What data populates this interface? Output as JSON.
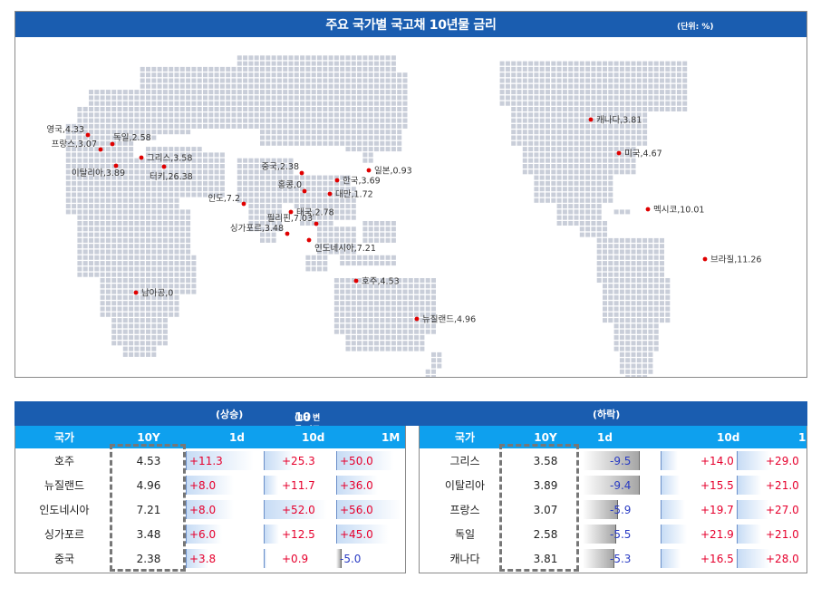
{
  "map": {
    "title": "주요 국가별 국고채 10년물 금리",
    "unit": "(단위: %)",
    "pins": [
      {
        "label": "영국,4.33"
      },
      {
        "label": "독일,2.58"
      },
      {
        "label": "프랑스,3.07"
      },
      {
        "label": "그리스,3.58"
      },
      {
        "label": "이탈리아,3.89"
      },
      {
        "label": "터키,26.38"
      },
      {
        "label": "중국,2.38"
      },
      {
        "label": "일본,0.93"
      },
      {
        "label": "한국,3.69"
      },
      {
        "label": "홍콩,0"
      },
      {
        "label": "대만,1.72"
      },
      {
        "label": "인도,7.2"
      },
      {
        "label": "태국,2.78"
      },
      {
        "label": "필리핀,7.03"
      },
      {
        "label": "싱가포르,3.48"
      },
      {
        "label": "인도네시아,7.21"
      },
      {
        "label": "남아공,0"
      },
      {
        "label": "호주,4.53"
      },
      {
        "label": "뉴질랜드,4.96"
      },
      {
        "label": "캐나다,3.81"
      },
      {
        "label": "미국,4.67"
      },
      {
        "label": "멕시코,10.01"
      },
      {
        "label": "브라질,11.26"
      }
    ]
  },
  "ranking": {
    "up_label": "(상승)",
    "title": "10년물 금리 변동 국가 순위",
    "subtitle": "(1d 변동 기준 %,bp)",
    "down_label": "(하락)",
    "columns": {
      "country": "국가",
      "y10": "10Y",
      "d1": "1d",
      "d10": "10d",
      "m1": "1M"
    },
    "rising": [
      {
        "country": "호주",
        "y10": "4.53",
        "d1": "+11.3",
        "d10": "+25.3",
        "m1": "+50.0",
        "d1v": 11.3,
        "d10v": 25.3,
        "m1v": 50.0
      },
      {
        "country": "뉴질랜드",
        "y10": "4.96",
        "d1": "+8.0",
        "d10": "+11.7",
        "m1": "+36.0",
        "d1v": 8.0,
        "d10v": 11.7,
        "m1v": 36.0
      },
      {
        "country": "인도네시아",
        "y10": "7.21",
        "d1": "+8.0",
        "d10": "+52.0",
        "m1": "+56.0",
        "d1v": 8.0,
        "d10v": 52.0,
        "m1v": 56.0
      },
      {
        "country": "싱가포르",
        "y10": "3.48",
        "d1": "+6.0",
        "d10": "+12.5",
        "m1": "+45.0",
        "d1v": 6.0,
        "d10v": 12.5,
        "m1v": 45.0
      },
      {
        "country": "중국",
        "y10": "2.38",
        "d1": "+3.8",
        "d10": "+0.9",
        "m1": "-5.0",
        "d1v": 3.8,
        "d10v": 0.9,
        "m1v": -5.0
      }
    ],
    "falling": [
      {
        "country": "그리스",
        "y10": "3.58",
        "d1": "-9.5",
        "d10": "+14.0",
        "m1": "+29.0",
        "d1v": -9.5,
        "d10v": 14.0,
        "m1v": 29.0
      },
      {
        "country": "이탈리아",
        "y10": "3.89",
        "d1": "-9.4",
        "d10": "+15.5",
        "m1": "+21.0",
        "d1v": -9.4,
        "d10v": 15.5,
        "m1v": 21.0
      },
      {
        "country": "프랑스",
        "y10": "3.07",
        "d1": "-5.9",
        "d10": "+19.7",
        "m1": "+27.0",
        "d1v": -5.9,
        "d10v": 19.7,
        "m1v": 27.0
      },
      {
        "country": "독일",
        "y10": "2.58",
        "d1": "-5.5",
        "d10": "+21.9",
        "m1": "+21.0",
        "d1v": -5.5,
        "d10v": 21.9,
        "m1v": 21.0
      },
      {
        "country": "캐나다",
        "y10": "3.81",
        "d1": "-5.3",
        "d10": "+16.5",
        "m1": "+28.0",
        "d1v": -5.3,
        "d10v": 16.5,
        "m1v": 28.0
      }
    ]
  },
  "colors": {
    "header": "#1a5db0",
    "subheader": "#0ea0ee",
    "positive": "#e6002d",
    "negative": "#2a3cc4",
    "dot": "#e00000",
    "land": "#c9ced9"
  }
}
